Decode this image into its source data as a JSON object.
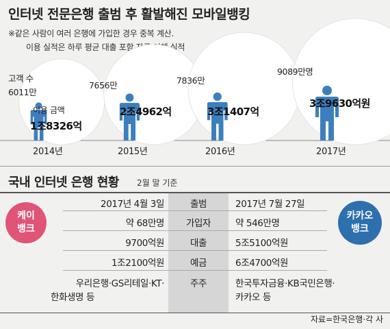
{
  "title": "인터넷 전문은행 출범 후 활발해진 모바일뱅킹",
  "notes": [
    "※같은 사람이 여러 은행에 가입한 경우 중복 계산.",
    "이용 실적은 하루 평균 대출 포함 자금 이체 실적"
  ],
  "labels": {
    "customers": "고객 수",
    "amount": "이용 금액"
  },
  "colors": {
    "figure": "#3d7fbd",
    "bubble": "#ffffff",
    "kbank": "#e05478",
    "kakao": "#2e6fae",
    "column": "#d6d6d6",
    "background": "#f1f1ef"
  },
  "chart_data": {
    "type": "bubble",
    "categories": [
      "2014년",
      "2015년",
      "2016년",
      "2017년"
    ],
    "series": [
      {
        "name": "고객 수",
        "values": [
          6011,
          7656,
          7836,
          9089
        ],
        "labels": [
          "6011만",
          "7656만",
          "7836만",
          "9089만명"
        ]
      },
      {
        "name": "이용 금액",
        "values": [
          18326,
          24962,
          31407,
          39630
        ],
        "labels": [
          "1조8326억",
          "2조4962억",
          "3조1407억",
          "3조9630억원"
        ]
      }
    ]
  },
  "section2": {
    "title": "국내 인터넷 은행 현황",
    "subtitle": "2월 말 기준"
  },
  "banks": {
    "left": [
      "케이",
      "뱅크"
    ],
    "right": [
      "카카오",
      "뱅크"
    ]
  },
  "table": {
    "rows": [
      {
        "label": "출범",
        "left": [
          "2017년 4월 3일"
        ],
        "right": [
          "2017년 7월 27일"
        ]
      },
      {
        "label": "가입자",
        "left": [
          "약 68만명"
        ],
        "right": [
          "약 546만명"
        ]
      },
      {
        "label": "대출",
        "left": [
          "9700억원"
        ],
        "right": [
          "5조5100억원"
        ]
      },
      {
        "label": "예금",
        "left": [
          "1조2100억원"
        ],
        "right": [
          "6조4700억원"
        ]
      },
      {
        "label": "주주",
        "left": [
          "우리은행·GS리테일·KT·",
          "한화생명 등"
        ],
        "right": [
          "한국투자금융·KB국민은행·",
          "카카오 등"
        ]
      }
    ]
  },
  "source": "자료=한국은행·각 사"
}
